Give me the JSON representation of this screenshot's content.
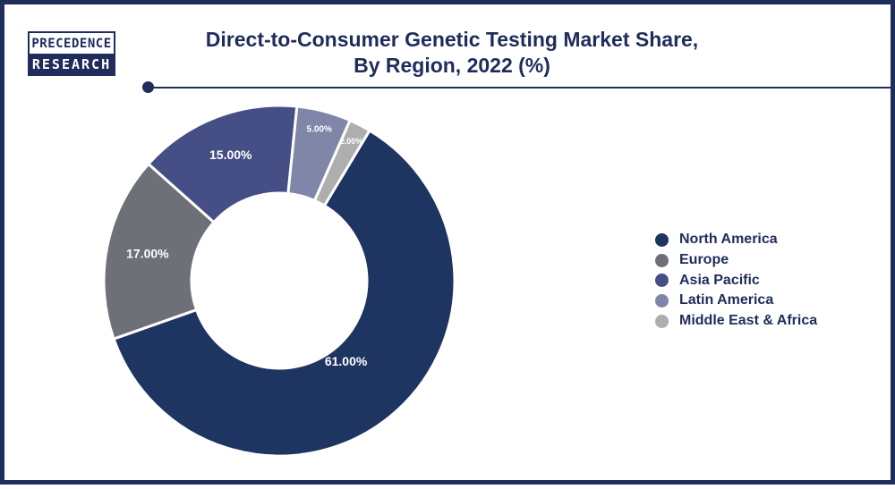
{
  "brand": {
    "line1": "PRECEDENCE",
    "line2": "RESEARCH",
    "color": "#1f2c5c"
  },
  "chart_data": {
    "type": "pie",
    "title": "Direct-to-Consumer Genetic Testing Market Share,\nBy Region, 2022 (%)",
    "donut": true,
    "categories": [
      "North America",
      "Europe",
      "Asia Pacific",
      "Latin America",
      "Middle East & Africa"
    ],
    "values": [
      61,
      17,
      15,
      5,
      2
    ],
    "labels": [
      "61.00%",
      "17.00%",
      "15.00%",
      "5.00%",
      "2.00%"
    ],
    "colors": [
      "#1e3461",
      "#6e7078",
      "#454f86",
      "#7f86a8",
      "#aeaeae"
    ],
    "legend_position": "right"
  }
}
